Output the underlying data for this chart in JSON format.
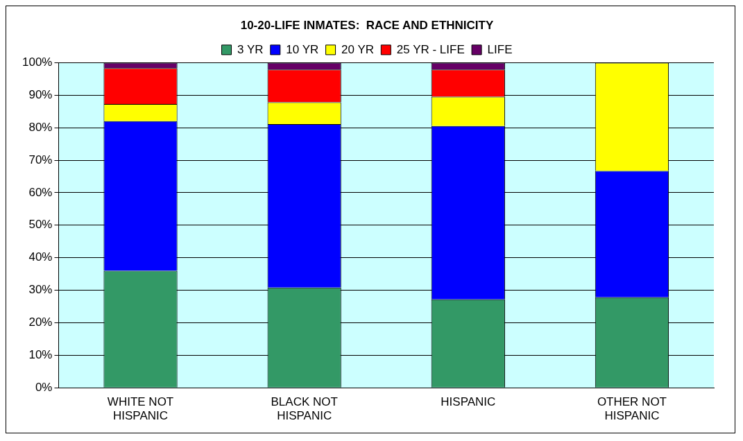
{
  "chart_data": {
    "type": "bar",
    "stacked": true,
    "title": "10-20-LIFE INMATES:  RACE AND ETHNICITY",
    "categories": [
      "WHITE NOT HISPANIC",
      "BLACK NOT HISPANIC",
      "HISPANIC",
      "OTHER NOT HISPANIC"
    ],
    "series": [
      {
        "name": "3 YR",
        "color": "#339966",
        "values": [
          36,
          30.8,
          27.2,
          27.8
        ]
      },
      {
        "name": "10 YR",
        "color": "#0000ff",
        "values": [
          46,
          50.3,
          53.3,
          38.9
        ]
      },
      {
        "name": "20 YR",
        "color": "#ffff00",
        "values": [
          5.3,
          6.7,
          9,
          33.3
        ]
      },
      {
        "name": "25 YR - LIFE",
        "color": "#ff0000",
        "values": [
          11,
          10.1,
          8.4,
          0
        ]
      },
      {
        "name": "LIFE",
        "color": "#660066",
        "values": [
          1.7,
          2.1,
          2.1,
          0
        ]
      }
    ],
    "ylim": [
      0,
      100
    ],
    "yticks": [
      {
        "value": 0,
        "label": "0%"
      },
      {
        "value": 10,
        "label": "10%"
      },
      {
        "value": 20,
        "label": "20%"
      },
      {
        "value": 30,
        "label": "30%"
      },
      {
        "value": 40,
        "label": "40%"
      },
      {
        "value": 50,
        "label": "50%"
      },
      {
        "value": 60,
        "label": "60%"
      },
      {
        "value": 70,
        "label": "70%"
      },
      {
        "value": 80,
        "label": "80%"
      },
      {
        "value": 90,
        "label": "90%"
      },
      {
        "value": 100,
        "label": "100%"
      }
    ],
    "grid": "y",
    "legend": "top"
  }
}
